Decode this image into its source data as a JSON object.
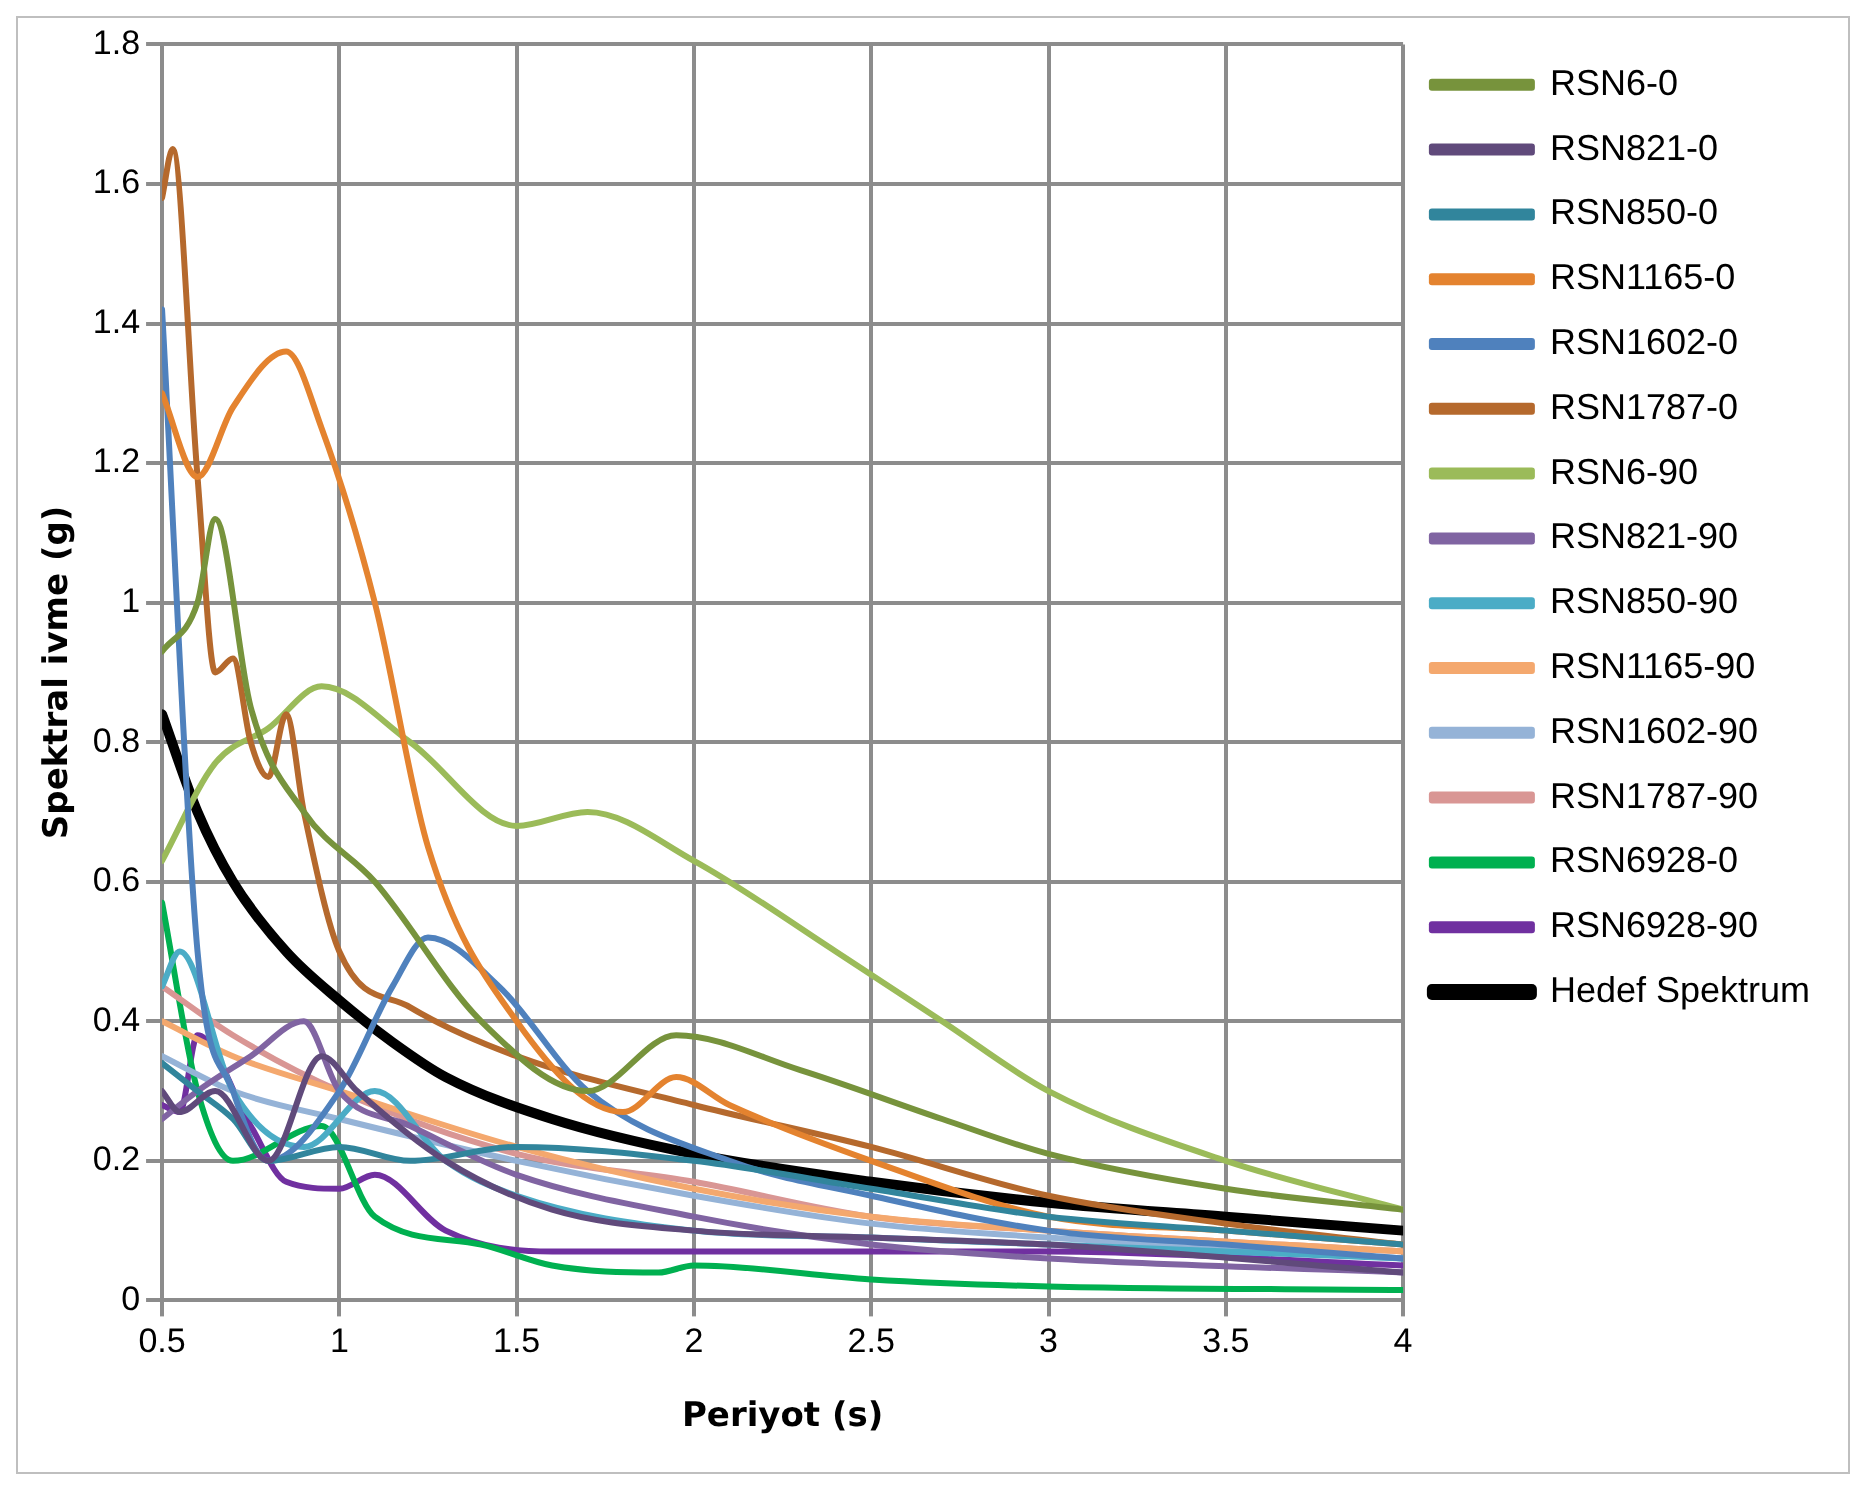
{
  "chart_data": {
    "type": "line",
    "xlabel": "Periyot (s)",
    "ylabel": "Spektral ivme (g)",
    "xlim": [
      0.5,
      4
    ],
    "xticks": [
      {
        "value": 0.5,
        "label": "0.5"
      },
      1,
      {
        "value": 1.5,
        "label": "1.5"
      },
      2,
      {
        "value": 2.5,
        "label": "2.5"
      },
      3,
      {
        "value": 3.5,
        "label": "3.5"
      },
      4
    ],
    "ylim": [
      0,
      1.8
    ],
    "yticks": [
      0,
      {
        "value": 0.2,
        "label": "0.2"
      },
      {
        "value": 0.4,
        "label": "0.4"
      },
      {
        "value": 0.6,
        "label": "0.6"
      },
      {
        "value": 0.8,
        "label": "0.8"
      },
      1,
      {
        "value": 1.2,
        "label": "1.2"
      },
      {
        "value": 1.4,
        "label": "1.4"
      },
      {
        "value": 1.6,
        "label": "1.6"
      },
      {
        "value": 1.8,
        "label": "1.8"
      }
    ],
    "grid": true,
    "legend": "right",
    "marker": "none",
    "line_style": "solid",
    "series": [
      {
        "name": "RSN6-0",
        "color": "#77933c",
        "x": [
          0.5,
          0.6,
          0.65,
          0.75,
          0.9,
          1.1,
          1.4,
          1.7,
          1.95,
          2.3,
          2.7,
          3,
          3.5,
          4
        ],
        "values": [
          0.93,
          1.0,
          1.12,
          0.85,
          0.7,
          0.6,
          0.4,
          0.3,
          0.38,
          0.33,
          0.26,
          0.21,
          0.16,
          0.13
        ]
      },
      {
        "name": "RSN821-0",
        "color": "#604a7b",
        "x": [
          0.5,
          0.55,
          0.65,
          0.8,
          0.95,
          1.05,
          1.3,
          1.6,
          2,
          2.5,
          3,
          4
        ],
        "values": [
          0.3,
          0.27,
          0.3,
          0.2,
          0.35,
          0.3,
          0.2,
          0.13,
          0.1,
          0.09,
          0.08,
          0.04
        ]
      },
      {
        "name": "RSN850-0",
        "color": "#31859c",
        "x": [
          0.5,
          0.6,
          0.7,
          0.8,
          1.0,
          1.2,
          1.5,
          2,
          2.5,
          3,
          3.5,
          4
        ],
        "values": [
          0.34,
          0.3,
          0.26,
          0.2,
          0.22,
          0.2,
          0.22,
          0.2,
          0.16,
          0.12,
          0.1,
          0.08
        ]
      },
      {
        "name": "RSN1165-0",
        "color": "#e4832f",
        "x": [
          0.5,
          0.6,
          0.7,
          0.85,
          0.95,
          1.1,
          1.25,
          1.5,
          1.8,
          1.95,
          2.1,
          2.5,
          3,
          3.5,
          4
        ],
        "values": [
          1.3,
          1.18,
          1.28,
          1.36,
          1.25,
          1.0,
          0.65,
          0.4,
          0.27,
          0.32,
          0.28,
          0.2,
          0.12,
          0.1,
          0.08
        ]
      },
      {
        "name": "RSN1602-0",
        "color": "#4f81bd",
        "x": [
          0.5,
          0.6,
          0.7,
          0.8,
          1.0,
          1.15,
          1.25,
          1.45,
          1.7,
          2.1,
          2.5,
          3,
          3.5,
          4
        ],
        "values": [
          1.42,
          0.5,
          0.3,
          0.2,
          0.3,
          0.45,
          0.52,
          0.45,
          0.3,
          0.2,
          0.15,
          0.1,
          0.08,
          0.06
        ]
      },
      {
        "name": "RSN1787-0",
        "color": "#b5692d",
        "x": [
          0.5,
          0.53,
          0.6,
          0.65,
          0.7,
          0.75,
          0.8,
          0.85,
          0.9,
          1.0,
          1.2,
          1.5,
          2,
          2.5,
          3,
          3.5,
          4
        ],
        "values": [
          1.58,
          1.65,
          1.18,
          0.9,
          0.92,
          0.8,
          0.75,
          0.84,
          0.7,
          0.5,
          0.42,
          0.35,
          0.28,
          0.22,
          0.15,
          0.11,
          0.08
        ]
      },
      {
        "name": "RSN6-90",
        "color": "#9bbb59",
        "x": [
          0.5,
          0.65,
          0.8,
          0.95,
          1.2,
          1.5,
          1.7,
          2.0,
          2.4,
          2.7,
          3,
          3.5,
          4
        ],
        "values": [
          0.63,
          0.77,
          0.82,
          0.88,
          0.8,
          0.68,
          0.7,
          0.63,
          0.5,
          0.4,
          0.3,
          0.2,
          0.13
        ]
      },
      {
        "name": "RSN821-90",
        "color": "#8064a2",
        "x": [
          0.5,
          0.6,
          0.75,
          0.9,
          1.0,
          1.2,
          1.5,
          2,
          2.5,
          3,
          4
        ],
        "values": [
          0.26,
          0.3,
          0.35,
          0.4,
          0.3,
          0.25,
          0.18,
          0.12,
          0.08,
          0.06,
          0.04
        ]
      },
      {
        "name": "RSN850-90",
        "color": "#4bacc6",
        "x": [
          0.5,
          0.55,
          0.7,
          0.9,
          1.1,
          1.3,
          1.5,
          2,
          2.5,
          3,
          4
        ],
        "values": [
          0.45,
          0.5,
          0.3,
          0.22,
          0.3,
          0.2,
          0.15,
          0.1,
          0.09,
          0.08,
          0.06
        ]
      },
      {
        "name": "RSN1165-90",
        "color": "#f4a86e",
        "x": [
          0.5,
          0.7,
          1.0,
          1.5,
          2,
          2.5,
          3,
          4
        ],
        "values": [
          0.4,
          0.35,
          0.3,
          0.22,
          0.16,
          0.12,
          0.1,
          0.07
        ]
      },
      {
        "name": "RSN1602-90",
        "color": "#95b3d7",
        "x": [
          0.5,
          0.7,
          1.0,
          1.5,
          2,
          2.5,
          3,
          4
        ],
        "values": [
          0.35,
          0.3,
          0.26,
          0.2,
          0.15,
          0.11,
          0.09,
          0.06
        ]
      },
      {
        "name": "RSN1787-90",
        "color": "#d99694",
        "x": [
          0.5,
          0.7,
          1.0,
          1.5,
          2,
          2.5,
          3,
          4
        ],
        "values": [
          0.45,
          0.38,
          0.3,
          0.21,
          0.17,
          0.12,
          0.1,
          0.07
        ]
      },
      {
        "name": "RSN6928-0",
        "color": "#00b050",
        "x": [
          0.5,
          0.6,
          0.7,
          0.95,
          1.1,
          1.4,
          1.6,
          1.9,
          2.0,
          2.5,
          3,
          4
        ],
        "values": [
          0.57,
          0.3,
          0.2,
          0.25,
          0.12,
          0.08,
          0.05,
          0.04,
          0.05,
          0.03,
          0.02,
          0.015
        ]
      },
      {
        "name": "RSN6928-90",
        "color": "#7030a0",
        "x": [
          0.5,
          0.55,
          0.6,
          0.75,
          0.85,
          1.0,
          1.1,
          1.3,
          1.6,
          2,
          3,
          4
        ],
        "values": [
          0.28,
          0.27,
          0.38,
          0.25,
          0.17,
          0.16,
          0.18,
          0.1,
          0.07,
          0.07,
          0.07,
          0.05
        ]
      },
      {
        "name": "Hedef Spektrum",
        "color": "#000000",
        "x": [
          0.5,
          0.6,
          0.7,
          0.85,
          1,
          1.15,
          1.3,
          1.6,
          2,
          2.5,
          3,
          3.5,
          4
        ],
        "values": [
          0.84,
          0.7,
          0.6,
          0.5,
          0.43,
          0.37,
          0.32,
          0.26,
          0.21,
          0.17,
          0.14,
          0.12,
          0.1
        ]
      }
    ]
  }
}
